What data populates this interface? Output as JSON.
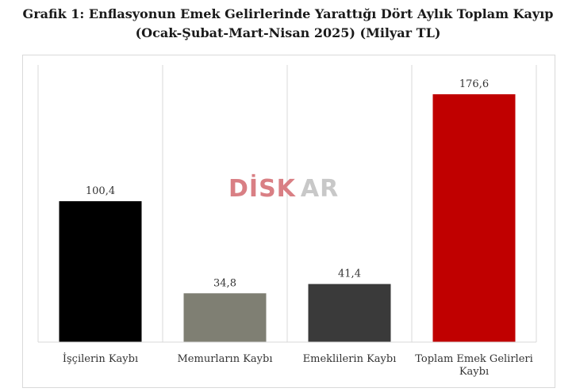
{
  "title": {
    "line1": "Grafik 1: Enflasyonun Emek Gelirlerinde Yarattığı Dört Aylık Toplam Kayıp",
    "line2": "(Ocak-Şubat-Mart-Nisan 2025) (Milyar TL)"
  },
  "watermark": {
    "part1": "DİSK",
    "part2": "AR",
    "color1": "#d97f84",
    "color2": "#c8c8c8"
  },
  "chart_data": {
    "type": "bar",
    "categories": [
      [
        "İşçilerin Kaybı"
      ],
      [
        "Memurların Kaybı"
      ],
      [
        "Emeklilerin Kaybı"
      ],
      [
        "Toplam Emek Gelirleri",
        "Kaybı"
      ]
    ],
    "values": [
      100.4,
      34.8,
      41.4,
      176.6
    ],
    "value_labels": [
      "100,4",
      "34,8",
      "41,4",
      "176,6"
    ],
    "colors": [
      "#000000",
      "#7f7f73",
      "#3a3a3a",
      "#c00000"
    ],
    "ylim": [
      0,
      197.5
    ],
    "grid": "vertical separators",
    "legend": "none"
  }
}
